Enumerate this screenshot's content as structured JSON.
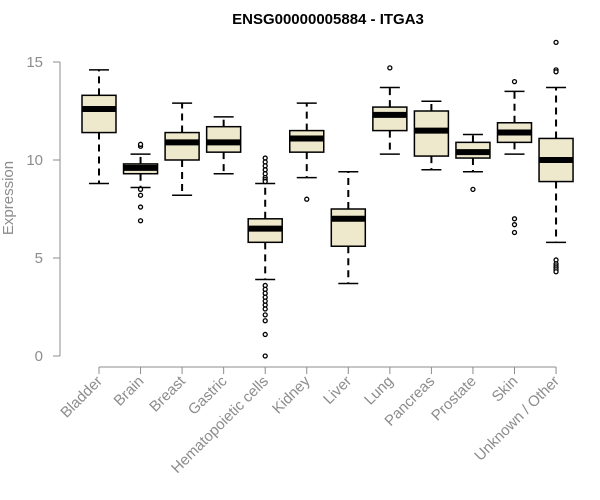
{
  "chart_data": {
    "type": "boxplot",
    "title": "ENSG00000005884 - ITGA3",
    "xlabel": "",
    "ylabel": "Expression",
    "ylim": [
      0,
      16
    ],
    "yticks": [
      0,
      5,
      10,
      15
    ],
    "grid": false,
    "colors": {
      "box_fill": "#eee8cc",
      "box_stroke": "#000000",
      "median": "#000000",
      "axis": "#8c8c8c",
      "outlier": "#000000"
    },
    "categories": [
      "Bladder",
      "Brain",
      "Breast",
      "Gastric",
      "Hematopoietic cells",
      "Kidney",
      "Liver",
      "Lung",
      "Pancreas",
      "Prostate",
      "Skin",
      "Unknown / Other"
    ],
    "boxes": [
      {
        "category": "Bladder",
        "whisker_low": 8.8,
        "q1": 11.4,
        "median": 12.6,
        "q3": 13.3,
        "whisker_high": 14.6,
        "outliers": []
      },
      {
        "category": "Brain",
        "whisker_low": 8.6,
        "q1": 9.3,
        "median": 9.6,
        "q3": 9.8,
        "whisker_high": 10.3,
        "outliers": [
          10.7,
          10.8,
          8.5,
          8.2,
          7.6,
          6.9
        ]
      },
      {
        "category": "Breast",
        "whisker_low": 8.2,
        "q1": 10.0,
        "median": 10.9,
        "q3": 11.4,
        "whisker_high": 12.9,
        "outliers": []
      },
      {
        "category": "Gastric",
        "whisker_low": 9.3,
        "q1": 10.4,
        "median": 10.9,
        "q3": 11.7,
        "whisker_high": 12.2,
        "outliers": []
      },
      {
        "category": "Hematopoietic cells",
        "whisker_low": 3.9,
        "q1": 5.8,
        "median": 6.5,
        "q3": 7.0,
        "whisker_high": 8.8,
        "outliers": [
          10.1,
          9.9,
          9.7,
          9.5,
          9.3,
          9.1,
          9.0,
          8.9,
          3.6,
          3.4,
          3.2,
          3.0,
          2.8,
          2.6,
          2.4,
          2.1,
          1.8,
          1.1,
          0.0
        ]
      },
      {
        "category": "Kidney",
        "whisker_low": 9.1,
        "q1": 10.4,
        "median": 11.1,
        "q3": 11.5,
        "whisker_high": 12.9,
        "outliers": [
          8.0
        ]
      },
      {
        "category": "Liver",
        "whisker_low": 3.7,
        "q1": 5.6,
        "median": 7.0,
        "q3": 7.5,
        "whisker_high": 9.4,
        "outliers": []
      },
      {
        "category": "Lung",
        "whisker_low": 10.3,
        "q1": 11.5,
        "median": 12.3,
        "q3": 12.7,
        "whisker_high": 13.7,
        "outliers": [
          14.7
        ]
      },
      {
        "category": "Pancreas",
        "whisker_low": 9.5,
        "q1": 10.2,
        "median": 11.5,
        "q3": 12.5,
        "whisker_high": 13.0,
        "outliers": []
      },
      {
        "category": "Prostate",
        "whisker_low": 9.4,
        "q1": 10.1,
        "median": 10.4,
        "q3": 10.9,
        "whisker_high": 11.3,
        "outliers": [
          8.5
        ]
      },
      {
        "category": "Skin",
        "whisker_low": 10.3,
        "q1": 10.9,
        "median": 11.4,
        "q3": 11.9,
        "whisker_high": 13.5,
        "outliers": [
          14.0,
          7.0,
          6.7,
          6.3
        ]
      },
      {
        "category": "Unknown / Other",
        "whisker_low": 5.8,
        "q1": 8.9,
        "median": 10.0,
        "q3": 11.1,
        "whisker_high": 13.7,
        "outliers": [
          16.0,
          14.6,
          14.5,
          4.9,
          4.7,
          4.6,
          4.5,
          4.4,
          4.3
        ]
      }
    ]
  }
}
